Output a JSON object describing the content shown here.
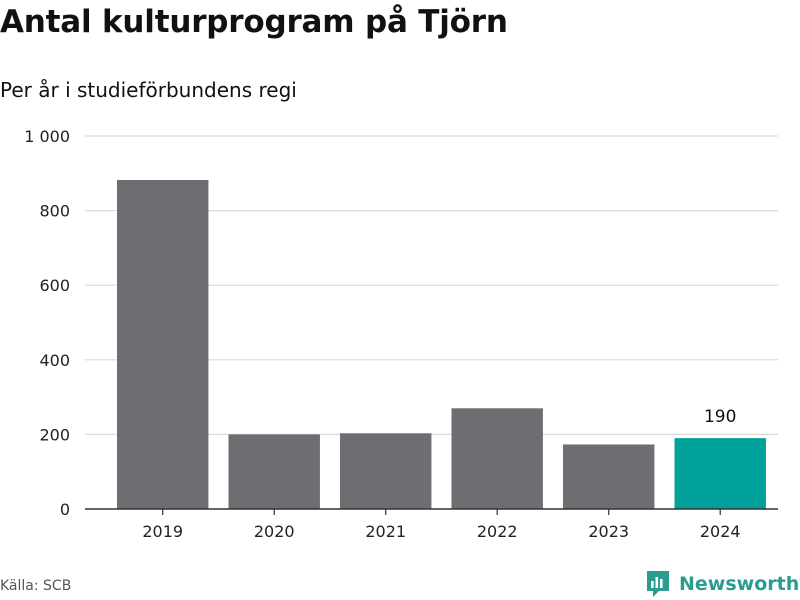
{
  "title": "Antal kulturprogram på Tjörn",
  "subtitle": "Per år i studieförbundens regi",
  "source": "Källa: SCB",
  "brand": "Newsworthy",
  "colors": {
    "bar": "#6e6d72",
    "highlight": "#00a19a",
    "grid": "#d9d9d9",
    "axis": "#333333",
    "brand": "#2a9d8f"
  },
  "chart_data": {
    "type": "bar",
    "categories": [
      "2019",
      "2020",
      "2021",
      "2022",
      "2023",
      "2024"
    ],
    "values": [
      882,
      200,
      203,
      270,
      173,
      190
    ],
    "highlight_index": 5,
    "data_labels": [
      {
        "category": "2024",
        "text": "190"
      }
    ],
    "ylim": [
      0,
      1000
    ],
    "yticks": [
      0,
      200,
      400,
      600,
      800,
      1000
    ],
    "ytick_labels": [
      "0",
      "200",
      "400",
      "600",
      "800",
      "1 000"
    ],
    "xlabel": "",
    "ylabel": "",
    "grid": true,
    "legend": "none"
  }
}
